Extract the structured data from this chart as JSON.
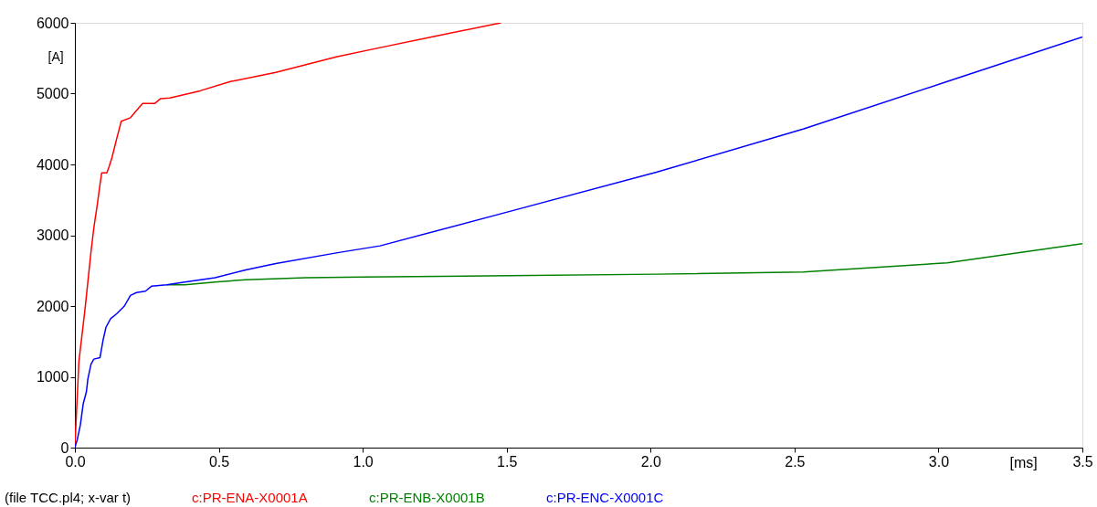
{
  "chart_data": {
    "type": "line",
    "xlabel": "[ms]",
    "ylabel": "[A]",
    "xlim": [
      0,
      3.5
    ],
    "ylim": [
      0,
      6000
    ],
    "xticks": [
      {
        "value": 0,
        "label": "0.0"
      },
      0.5,
      {
        "value": 1,
        "label": "1.0"
      },
      1.5,
      {
        "value": 2,
        "label": "2.0"
      },
      2.5,
      {
        "value": 3,
        "label": "3.0"
      },
      3.5
    ],
    "yticks": [
      0,
      1000,
      2000,
      3000,
      4000,
      5000,
      6000
    ],
    "grid": false,
    "legend": "bottom",
    "marker": "none",
    "line_style": "solid",
    "annotations": [
      "(file TCC.pl4; x-var t)"
    ],
    "series": [
      {
        "name": "c:PR-ENA-X0001A",
        "color": "#ff0000",
        "x": [
          0,
          0.003,
          0.014,
          0.024,
          0.035,
          0.045,
          0.056,
          0.066,
          0.077,
          0.087,
          0.093,
          0.111,
          0.119,
          0.129,
          0.145,
          0.161,
          0.193,
          0.22,
          0.235,
          0.277,
          0.298,
          0.33,
          0.435,
          0.54,
          0.698,
          0.908,
          1.06,
          1.25,
          1.48
        ],
        "values": [
          0,
          280,
          1220,
          1570,
          1950,
          2340,
          2770,
          3110,
          3410,
          3710,
          3880,
          3880,
          3970,
          4100,
          4360,
          4610,
          4660,
          4790,
          4860,
          4860,
          4930,
          4940,
          5040,
          5170,
          5300,
          5520,
          5650,
          5810,
          6000
        ]
      },
      {
        "name": "c:PR-ENB-X0001B",
        "color": "#008000",
        "x": [
          0.319,
          0.382,
          0.487,
          0.593,
          0.803,
          1.0,
          1.51,
          2.02,
          2.53,
          3.03,
          3.5
        ],
        "values": [
          2300,
          2300,
          2340,
          2370,
          2400,
          2410,
          2430,
          2450,
          2480,
          2610,
          2880
        ]
      },
      {
        "name": "c:PR-ENC-X0001C",
        "color": "#0000ff",
        "x": [
          0,
          0.008,
          0.019,
          0.029,
          0.04,
          0.045,
          0.056,
          0.066,
          0.087,
          0.098,
          0.108,
          0.124,
          0.145,
          0.172,
          0.193,
          0.214,
          0.245,
          0.266,
          0.319,
          0.382,
          0.487,
          0.593,
          0.698,
          0.908,
          1.06,
          1.514,
          2.02,
          2.53,
          3.03,
          3.5
        ],
        "values": [
          0,
          110,
          320,
          620,
          790,
          970,
          1180,
          1250,
          1270,
          1520,
          1700,
          1820,
          1890,
          2000,
          2150,
          2190,
          2210,
          2280,
          2300,
          2340,
          2400,
          2510,
          2600,
          2750,
          2850,
          3340,
          3890,
          4500,
          5170,
          5800
        ]
      }
    ]
  }
}
